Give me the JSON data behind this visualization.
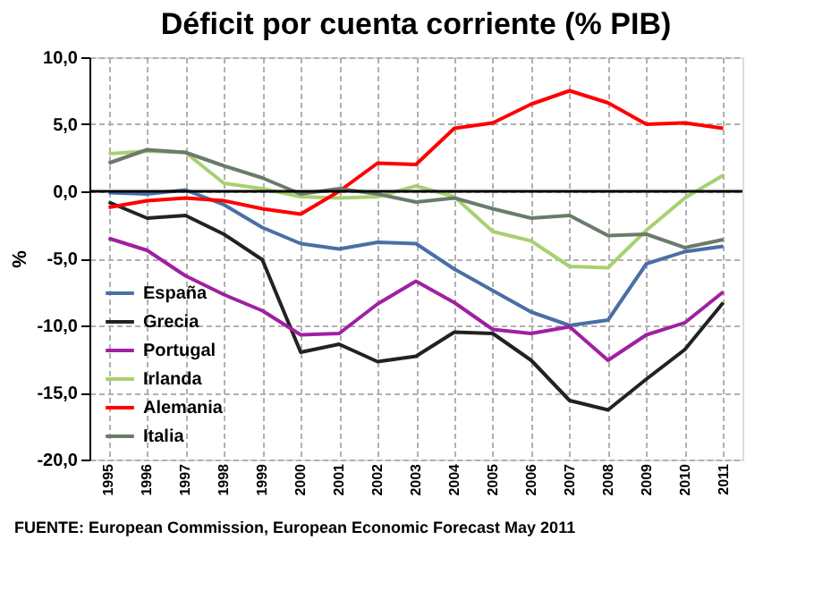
{
  "chart_data": {
    "type": "line",
    "title": "Déficit por cuenta corriente (% PIB)",
    "ylabel": "%",
    "categories": [
      "1995",
      "1996",
      "1997",
      "1998",
      "1999",
      "2000",
      "2001",
      "2002",
      "2003",
      "2004",
      "2005",
      "2006",
      "2007",
      "2008",
      "2009",
      "2010",
      "2011"
    ],
    "series": [
      {
        "name": "España",
        "color": "#4a6fa5",
        "values": [
          -0.1,
          -0.2,
          0.1,
          -1.0,
          -2.7,
          -3.9,
          -4.3,
          -3.8,
          -3.9,
          -5.8,
          -7.4,
          -9.0,
          -10.0,
          -9.6,
          -5.4,
          -4.5,
          -4.1
        ]
      },
      {
        "name": "Grecia",
        "color": "#222222",
        "values": [
          -0.8,
          -2.0,
          -1.8,
          -3.2,
          -5.1,
          -12.0,
          -11.4,
          -12.7,
          -12.3,
          -10.5,
          -10.6,
          -12.6,
          -15.6,
          -16.3,
          -14.0,
          -11.8,
          -8.3
        ]
      },
      {
        "name": "Portugal",
        "color": "#a020a0",
        "values": [
          -3.5,
          -4.4,
          -6.3,
          -7.7,
          -8.9,
          -10.7,
          -10.6,
          -8.4,
          -6.7,
          -8.3,
          -10.3,
          -10.6,
          -10.1,
          -12.6,
          -10.7,
          -9.8,
          -7.5
        ]
      },
      {
        "name": "Irlanda",
        "color": "#a8d070",
        "values": [
          2.8,
          3.0,
          2.9,
          0.6,
          0.2,
          -0.4,
          -0.5,
          -0.4,
          0.4,
          -0.4,
          -3.0,
          -3.7,
          -5.6,
          -5.7,
          -2.9,
          -0.5,
          1.2
        ]
      },
      {
        "name": "Alemania",
        "color": "#ff0000",
        "values": [
          -1.2,
          -0.7,
          -0.5,
          -0.7,
          -1.3,
          -1.7,
          0.0,
          2.1,
          2.0,
          4.7,
          5.1,
          6.5,
          7.5,
          6.6,
          5.0,
          5.1,
          4.7
        ]
      },
      {
        "name": "Italia",
        "color": "#6b7b6b",
        "values": [
          2.1,
          3.1,
          2.9,
          1.9,
          1.0,
          -0.2,
          0.2,
          -0.2,
          -0.8,
          -0.5,
          -1.3,
          -2.0,
          -1.8,
          -3.3,
          -3.2,
          -4.2,
          -3.6
        ]
      }
    ],
    "ylim": [
      -20,
      10
    ],
    "yticks": [
      {
        "value": -20,
        "label": "-20,0"
      },
      {
        "value": -15,
        "label": "-15,0"
      },
      {
        "value": -10,
        "label": "-10,0"
      },
      {
        "value": -5,
        "label": "-5,0"
      },
      {
        "value": 0,
        "label": "0,0"
      },
      {
        "value": 5,
        "label": "5,0"
      },
      {
        "value": 10,
        "label": "10,0"
      }
    ],
    "ref_lines": [
      {
        "axis": "y",
        "value": 0,
        "color": "#000000"
      }
    ],
    "grid": true,
    "legend": "bottom left",
    "marker": "none",
    "line_style": "solid",
    "annotations": [
      "FUENTE: European Commission, European  Economic  Forecast May 2011"
    ]
  }
}
